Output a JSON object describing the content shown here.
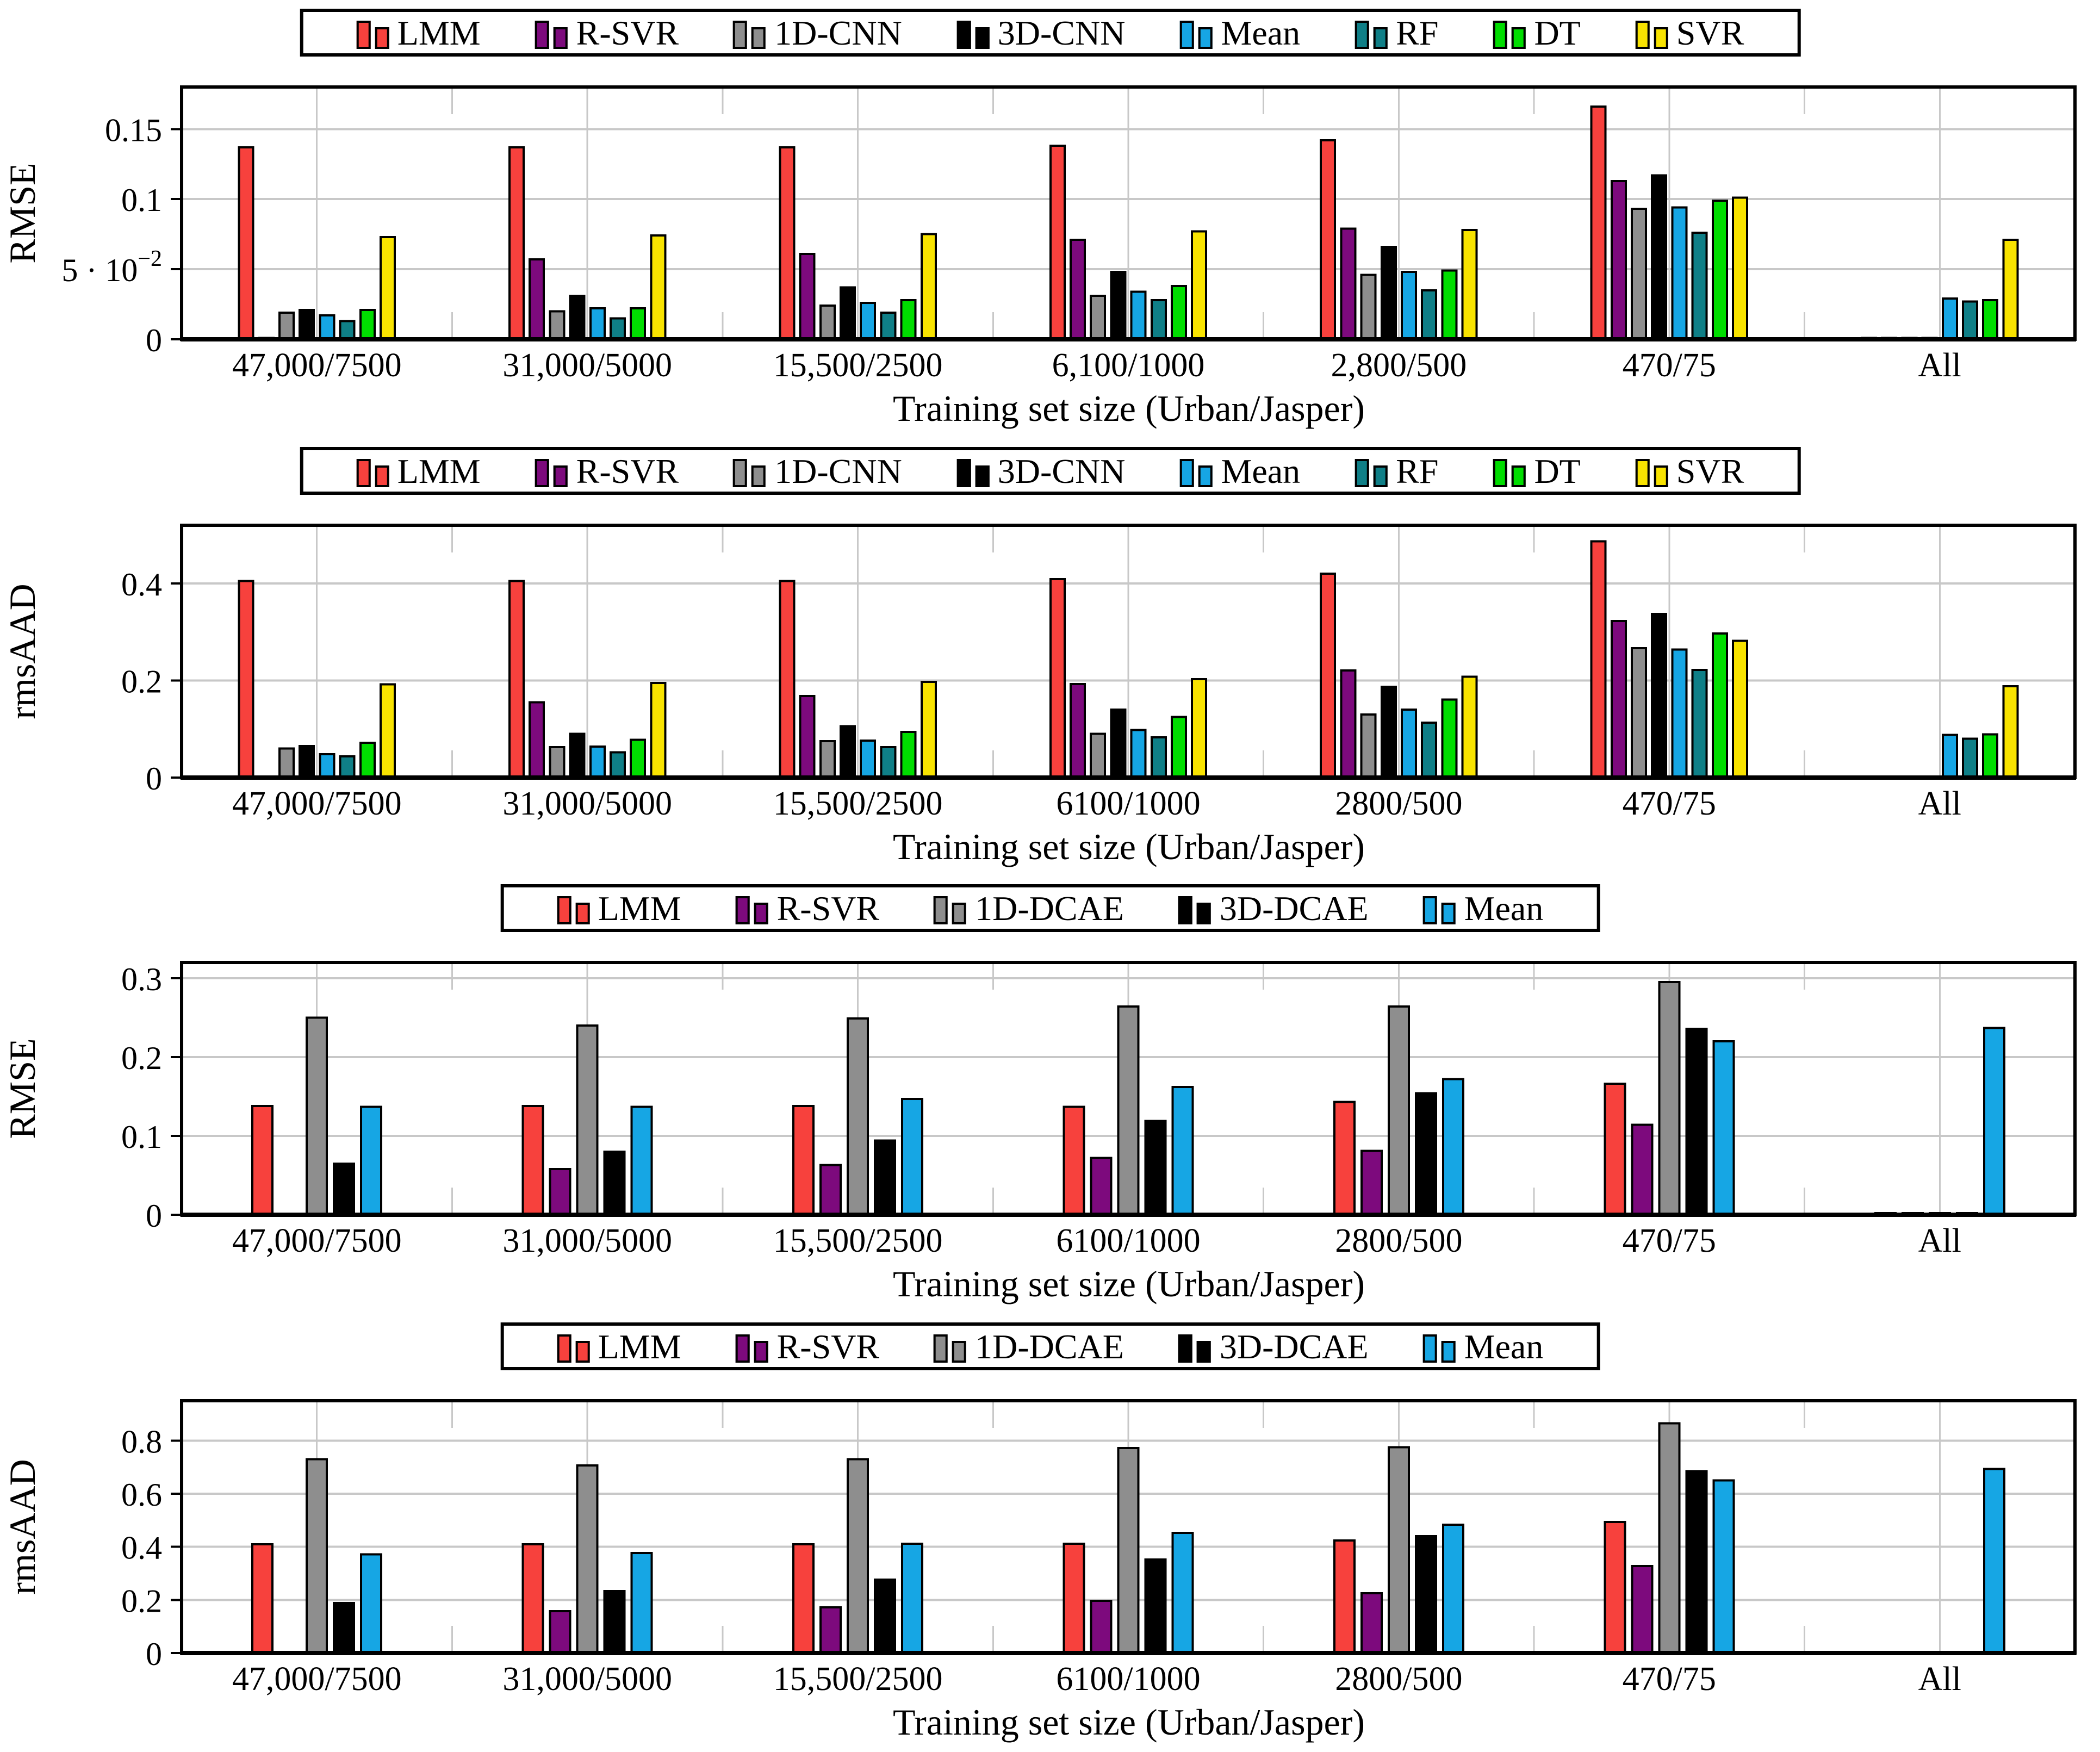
{
  "figure": {
    "xlabel": "Training set size (Urban/Jasper)",
    "background": "#ffffff",
    "gridline_color": "#c8c8c8",
    "bar_outline_color": "#000000"
  },
  "chart_data": [
    {
      "type": "bar",
      "title": "",
      "ylabel": "RMSE",
      "xlabel": "Training set size (Urban/Jasper)",
      "ylim": [
        0,
        0.18
      ],
      "grid": true,
      "legend_position": "top",
      "yticks": [
        {
          "v": 0,
          "label": "0"
        },
        {
          "v": 0.05,
          "label": "5 · 10⁻²",
          "base": "5 · 10",
          "sup": "−2"
        },
        {
          "v": 0.1,
          "label": "0.1"
        },
        {
          "v": 0.15,
          "label": "0.15"
        }
      ],
      "categories": [
        "47,000/7500",
        "31,000/5000",
        "15,500/2500",
        "6,100/1000",
        "2,800/500",
        "470/75",
        "All"
      ],
      "series": [
        {
          "name": "LMM",
          "color": "#f7413d",
          "values": [
            0.137,
            0.137,
            0.137,
            0.138,
            0.142,
            0.166,
            0.001
          ]
        },
        {
          "name": "R-SVR",
          "color": "#7d0a7d",
          "values": [
            0.001,
            0.057,
            0.061,
            0.071,
            0.079,
            0.113,
            0.001
          ]
        },
        {
          "name": "1D-CNN",
          "color": "#8e8e8e",
          "values": [
            0.019,
            0.02,
            0.024,
            0.031,
            0.046,
            0.093,
            0.001
          ]
        },
        {
          "name": "3D-CNN",
          "color": "#000000",
          "values": [
            0.021,
            0.031,
            0.037,
            0.048,
            0.066,
            0.117,
            0.001
          ]
        },
        {
          "name": "Mean",
          "color": "#16a6e4",
          "values": [
            0.017,
            0.022,
            0.026,
            0.034,
            0.048,
            0.094,
            0.029
          ]
        },
        {
          "name": "RF",
          "color": "#0f7f87",
          "values": [
            0.013,
            0.015,
            0.019,
            0.028,
            0.035,
            0.076,
            0.027
          ]
        },
        {
          "name": "DT",
          "color": "#00dd00",
          "values": [
            0.021,
            0.022,
            0.028,
            0.038,
            0.049,
            0.099,
            0.028
          ]
        },
        {
          "name": "SVR",
          "color": "#f8e300",
          "values": [
            0.073,
            0.074,
            0.075,
            0.077,
            0.078,
            0.101,
            0.071
          ]
        }
      ]
    },
    {
      "type": "bar",
      "title": "",
      "ylabel": "rmsAAD",
      "xlabel": "Training set size (Urban/Jasper)",
      "ylim": [
        0,
        0.52
      ],
      "grid": true,
      "legend_position": "top",
      "yticks": [
        {
          "v": 0,
          "label": "0"
        },
        {
          "v": 0.2,
          "label": "0.2"
        },
        {
          "v": 0.4,
          "label": "0.4"
        }
      ],
      "categories": [
        "47,000/7500",
        "31,000/5000",
        "15,500/2500",
        "6100/1000",
        "2800/500",
        "470/75",
        "All"
      ],
      "series": [
        {
          "name": "LMM",
          "color": "#f7413d",
          "values": [
            0.405,
            0.405,
            0.405,
            0.409,
            0.42,
            0.487,
            0.002
          ]
        },
        {
          "name": "R-SVR",
          "color": "#7d0a7d",
          "values": [
            0.002,
            0.155,
            0.168,
            0.193,
            0.221,
            0.323,
            0.002
          ]
        },
        {
          "name": "1D-CNN",
          "color": "#8e8e8e",
          "values": [
            0.06,
            0.063,
            0.075,
            0.09,
            0.13,
            0.267,
            0.002
          ]
        },
        {
          "name": "3D-CNN",
          "color": "#000000",
          "values": [
            0.065,
            0.09,
            0.106,
            0.14,
            0.187,
            0.337,
            0.002
          ]
        },
        {
          "name": "Mean",
          "color": "#16a6e4",
          "values": [
            0.048,
            0.064,
            0.076,
            0.098,
            0.14,
            0.264,
            0.088
          ]
        },
        {
          "name": "RF",
          "color": "#0f7f87",
          "values": [
            0.044,
            0.052,
            0.063,
            0.083,
            0.113,
            0.222,
            0.08
          ]
        },
        {
          "name": "DT",
          "color": "#00dd00",
          "values": [
            0.072,
            0.078,
            0.094,
            0.125,
            0.161,
            0.297,
            0.089
          ]
        },
        {
          "name": "SVR",
          "color": "#f8e300",
          "values": [
            0.192,
            0.195,
            0.197,
            0.203,
            0.208,
            0.282,
            0.188
          ]
        }
      ]
    },
    {
      "type": "bar",
      "title": "",
      "ylabel": "RMSE",
      "xlabel": "Training set size (Urban/Jasper)",
      "ylim": [
        0,
        0.32
      ],
      "grid": true,
      "legend_position": "top",
      "yticks": [
        {
          "v": 0,
          "label": "0"
        },
        {
          "v": 0.1,
          "label": "0.1"
        },
        {
          "v": 0.2,
          "label": "0.2"
        },
        {
          "v": 0.3,
          "label": "0.3"
        }
      ],
      "categories": [
        "47,000/7500",
        "31,000/5000",
        "15,500/2500",
        "6100/1000",
        "2800/500",
        "470/75",
        "All"
      ],
      "series": [
        {
          "name": "LMM",
          "color": "#f7413d",
          "values": [
            0.138,
            0.138,
            0.138,
            0.137,
            0.143,
            0.166,
            0.002
          ]
        },
        {
          "name": "R-SVR",
          "color": "#7d0a7d",
          "values": [
            0.001,
            0.058,
            0.063,
            0.072,
            0.081,
            0.114,
            0.002
          ]
        },
        {
          "name": "1D-DCAE",
          "color": "#8e8e8e",
          "values": [
            0.25,
            0.24,
            0.249,
            0.264,
            0.264,
            0.295,
            0.002
          ]
        },
        {
          "name": "3D-DCAE",
          "color": "#000000",
          "values": [
            0.065,
            0.08,
            0.094,
            0.119,
            0.154,
            0.236,
            0.002
          ]
        },
        {
          "name": "Mean",
          "color": "#16a6e4",
          "values": [
            0.137,
            0.137,
            0.147,
            0.162,
            0.172,
            0.22,
            0.237
          ]
        }
      ]
    },
    {
      "type": "bar",
      "title": "",
      "ylabel": "rmsAAD",
      "xlabel": "Training set size (Urban/Jasper)",
      "ylim": [
        0,
        0.95
      ],
      "grid": true,
      "legend_position": "top",
      "yticks": [
        {
          "v": 0,
          "label": "0"
        },
        {
          "v": 0.2,
          "label": "0.2"
        },
        {
          "v": 0.4,
          "label": "0.4"
        },
        {
          "v": 0.6,
          "label": "0.6"
        },
        {
          "v": 0.8,
          "label": "0.8"
        }
      ],
      "categories": [
        "47,000/7500",
        "31,000/5000",
        "15,500/2500",
        "6100/1000",
        "2800/500",
        "470/75",
        "All"
      ],
      "series": [
        {
          "name": "LMM",
          "color": "#f7413d",
          "values": [
            0.41,
            0.41,
            0.41,
            0.412,
            0.424,
            0.494,
            0.003
          ]
        },
        {
          "name": "R-SVR",
          "color": "#7d0a7d",
          "values": [
            0.003,
            0.158,
            0.172,
            0.196,
            0.225,
            0.327,
            0.003
          ]
        },
        {
          "name": "1D-DCAE",
          "color": "#8e8e8e",
          "values": [
            0.73,
            0.706,
            0.73,
            0.772,
            0.775,
            0.865,
            0.003
          ]
        },
        {
          "name": "3D-DCAE",
          "color": "#000000",
          "values": [
            0.188,
            0.234,
            0.277,
            0.352,
            0.44,
            0.685,
            0.003
          ]
        },
        {
          "name": "Mean",
          "color": "#16a6e4",
          "values": [
            0.372,
            0.377,
            0.412,
            0.452,
            0.483,
            0.65,
            0.693
          ]
        }
      ]
    }
  ]
}
